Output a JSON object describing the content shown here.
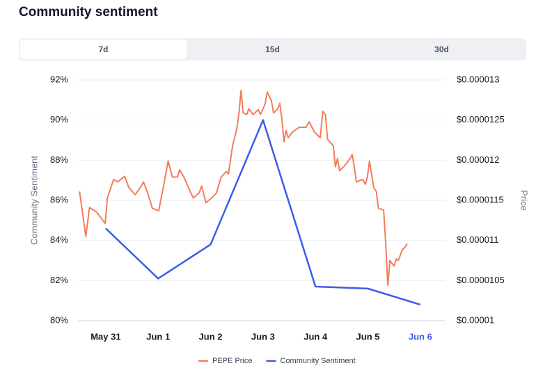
{
  "tabs": {
    "items": [
      "7d",
      "15d",
      "30d"
    ],
    "selected": 0
  },
  "chart_data": {
    "type": "line",
    "title": "Community sentiment",
    "ylabel": "Community Sentiment",
    "y2label": "Price",
    "xlim": [
      -0.53,
      6.48
    ],
    "xticks": [
      {
        "value": 0,
        "label": "May 31"
      },
      {
        "value": 1,
        "label": "Jun 1"
      },
      {
        "value": 2,
        "label": "Jun 2"
      },
      {
        "value": 3,
        "label": "Jun 3"
      },
      {
        "value": 4,
        "label": "Jun 4"
      },
      {
        "value": 5,
        "label": "Jun 5"
      },
      {
        "value": 6,
        "label": "Jun 6"
      }
    ],
    "xtick_colors": [
      "#111827",
      "#111827",
      "#111827",
      "#111827",
      "#111827",
      "#111827",
      "#3d5ce6"
    ],
    "ylim": [
      80,
      92
    ],
    "yticks": [
      {
        "value": 80,
        "label": "80%"
      },
      {
        "value": 82,
        "label": "82%"
      },
      {
        "value": 84,
        "label": "84%"
      },
      {
        "value": 86,
        "label": "86%"
      },
      {
        "value": 88,
        "label": "88%"
      },
      {
        "value": 90,
        "label": "90%"
      },
      {
        "value": 92,
        "label": "92%"
      }
    ],
    "y2lim": [
      1e-05,
      1.3e-05
    ],
    "y2ticks": [
      {
        "value": 1e-05,
        "label": "$0.00001"
      },
      {
        "value": 1.05e-05,
        "label": "$0.0000105"
      },
      {
        "value": 1.1e-05,
        "label": "$0.000011"
      },
      {
        "value": 1.15e-05,
        "label": "$0.0000115"
      },
      {
        "value": 1.2e-05,
        "label": "$0.000012"
      },
      {
        "value": 1.25e-05,
        "label": "$0.0000125"
      },
      {
        "value": 1.3e-05,
        "label": "$0.000013"
      }
    ],
    "grid": true,
    "series": [
      {
        "name": "PEPE Price",
        "color": "#f47c5c",
        "axis": "y2",
        "x": [
          -0.5,
          -0.38,
          -0.31,
          -0.17,
          -0.01,
          0.03,
          0.15,
          0.23,
          0.36,
          0.44,
          0.56,
          0.64,
          0.72,
          0.8,
          0.89,
          1.01,
          1.1,
          1.19,
          1.27,
          1.37,
          1.41,
          1.49,
          1.59,
          1.67,
          1.78,
          1.83,
          1.91,
          2.02,
          2.11,
          2.2,
          2.3,
          2.34,
          2.42,
          2.5,
          2.54,
          2.58,
          2.62,
          2.69,
          2.73,
          2.81,
          2.91,
          2.95,
          3.04,
          3.08,
          3.16,
          3.2,
          3.28,
          3.32,
          3.36,
          3.4,
          3.44,
          3.48,
          3.56,
          3.69,
          3.82,
          3.88,
          3.98,
          4.09,
          4.14,
          4.19,
          4.23,
          4.34,
          4.38,
          4.42,
          4.46,
          4.54,
          4.66,
          4.7,
          4.74,
          4.78,
          4.9,
          4.95,
          4.99,
          5.03,
          5.07,
          5.11,
          5.16,
          5.2,
          5.3,
          5.34,
          5.38,
          5.42,
          5.5,
          5.54,
          5.58,
          5.66,
          5.69,
          5.75
        ],
        "values": [
          1.161e-05,
          1.105e-05,
          1.141e-05,
          1.135e-05,
          1.121e-05,
          1.153e-05,
          1.176e-05,
          1.173e-05,
          1.18e-05,
          1.166e-05,
          1.157e-05,
          1.164e-05,
          1.173e-05,
          1.159e-05,
          1.14e-05,
          1.137e-05,
          1.167e-05,
          1.199e-05,
          1.179e-05,
          1.179e-05,
          1.188e-05,
          1.179e-05,
          1.164e-05,
          1.153e-05,
          1.159e-05,
          1.168e-05,
          1.147e-05,
          1.153e-05,
          1.159e-05,
          1.179e-05,
          1.186e-05,
          1.183e-05,
          1.218e-05,
          1.239e-05,
          1.258e-05,
          1.287e-05,
          1.259e-05,
          1.257e-05,
          1.264e-05,
          1.257e-05,
          1.263e-05,
          1.257e-05,
          1.27e-05,
          1.285e-05,
          1.274e-05,
          1.259e-05,
          1.264e-05,
          1.271e-05,
          1.251e-05,
          1.223e-05,
          1.237e-05,
          1.228e-05,
          1.235e-05,
          1.241e-05,
          1.241e-05,
          1.248e-05,
          1.235e-05,
          1.228e-05,
          1.261e-05,
          1.257e-05,
          1.226e-05,
          1.218e-05,
          1.192e-05,
          1.202e-05,
          1.187e-05,
          1.192e-05,
          1.202e-05,
          1.207e-05,
          1.192e-05,
          1.173e-05,
          1.176e-05,
          1.17e-05,
          1.179e-05,
          1.199e-05,
          1.183e-05,
          1.166e-05,
          1.161e-05,
          1.14e-05,
          1.138e-05,
          1.096e-05,
          1.044e-05,
          1.075e-05,
          1.068e-05,
          1.077e-05,
          1.075e-05,
          1.089e-05,
          1.09e-05,
          1.096e-05
        ]
      },
      {
        "name": "Community Sentiment",
        "color": "#3d5ce6",
        "axis": "y",
        "x": [
          0,
          1,
          2,
          3,
          4,
          5,
          6
        ],
        "values": [
          84.6,
          82.1,
          83.8,
          90.0,
          81.7,
          81.6,
          80.8
        ]
      }
    ]
  }
}
